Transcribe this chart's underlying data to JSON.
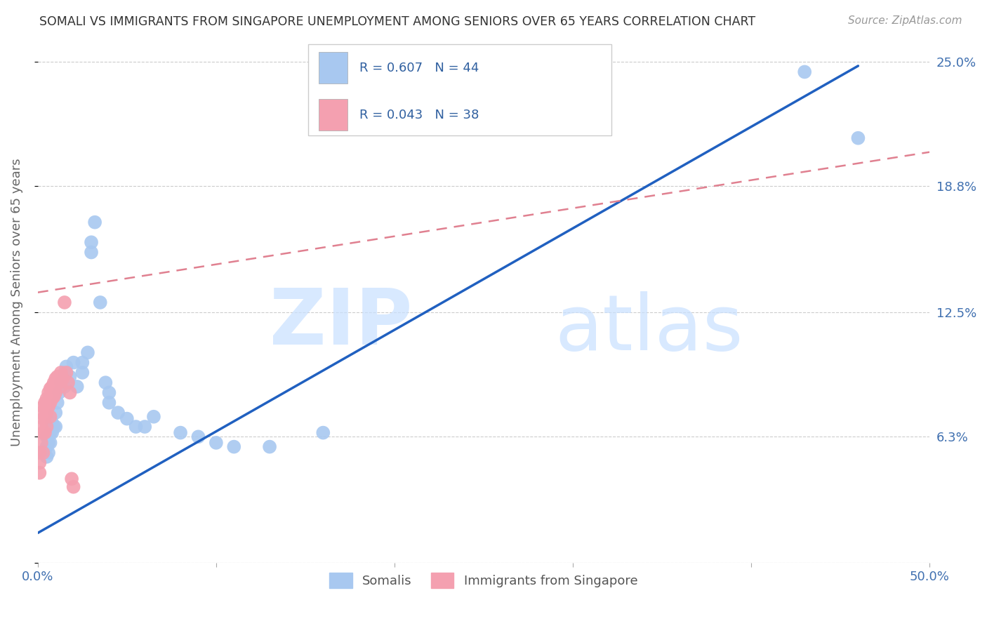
{
  "title": "SOMALI VS IMMIGRANTS FROM SINGAPORE UNEMPLOYMENT AMONG SENIORS OVER 65 YEARS CORRELATION CHART",
  "source": "Source: ZipAtlas.com",
  "ylabel": "Unemployment Among Seniors over 65 years",
  "xmin": 0.0,
  "xmax": 0.5,
  "ymin": 0.0,
  "ymax": 0.26,
  "somali_R": 0.607,
  "somali_N": 44,
  "singapore_R": 0.043,
  "singapore_N": 38,
  "somali_color": "#A8C8F0",
  "singapore_color": "#F4A0B0",
  "somali_line_color": "#2060C0",
  "singapore_line_color": "#E08090",
  "somali_line": [
    [
      0.0,
      0.015
    ],
    [
      0.46,
      0.248
    ]
  ],
  "singapore_line": [
    [
      0.0,
      0.135
    ],
    [
      0.5,
      0.205
    ]
  ],
  "somali_x": [
    0.005,
    0.005,
    0.005,
    0.006,
    0.006,
    0.007,
    0.007,
    0.008,
    0.008,
    0.009,
    0.01,
    0.01,
    0.011,
    0.012,
    0.013,
    0.015,
    0.015,
    0.016,
    0.018,
    0.02,
    0.022,
    0.025,
    0.025,
    0.028,
    0.03,
    0.03,
    0.032,
    0.035,
    0.038,
    0.04,
    0.04,
    0.045,
    0.05,
    0.055,
    0.06,
    0.065,
    0.08,
    0.09,
    0.1,
    0.11,
    0.13,
    0.16,
    0.43,
    0.46
  ],
  "somali_y": [
    0.063,
    0.058,
    0.053,
    0.06,
    0.055,
    0.065,
    0.06,
    0.07,
    0.065,
    0.068,
    0.075,
    0.068,
    0.08,
    0.085,
    0.09,
    0.095,
    0.088,
    0.098,
    0.093,
    0.1,
    0.088,
    0.1,
    0.095,
    0.105,
    0.16,
    0.155,
    0.17,
    0.13,
    0.09,
    0.085,
    0.08,
    0.075,
    0.072,
    0.068,
    0.068,
    0.073,
    0.065,
    0.063,
    0.06,
    0.058,
    0.058,
    0.065,
    0.245,
    0.212
  ],
  "singapore_x": [
    0.001,
    0.001,
    0.001,
    0.002,
    0.002,
    0.002,
    0.003,
    0.003,
    0.003,
    0.003,
    0.004,
    0.004,
    0.004,
    0.005,
    0.005,
    0.005,
    0.006,
    0.006,
    0.007,
    0.007,
    0.007,
    0.008,
    0.008,
    0.009,
    0.009,
    0.01,
    0.01,
    0.011,
    0.012,
    0.013,
    0.013,
    0.014,
    0.015,
    0.016,
    0.017,
    0.018,
    0.019,
    0.02
  ],
  "singapore_y": [
    0.055,
    0.05,
    0.045,
    0.075,
    0.068,
    0.06,
    0.078,
    0.072,
    0.065,
    0.055,
    0.08,
    0.073,
    0.065,
    0.082,
    0.075,
    0.068,
    0.085,
    0.078,
    0.087,
    0.08,
    0.073,
    0.088,
    0.082,
    0.09,
    0.083,
    0.092,
    0.085,
    0.093,
    0.09,
    0.088,
    0.095,
    0.092,
    0.13,
    0.095,
    0.09,
    0.085,
    0.042,
    0.038
  ]
}
